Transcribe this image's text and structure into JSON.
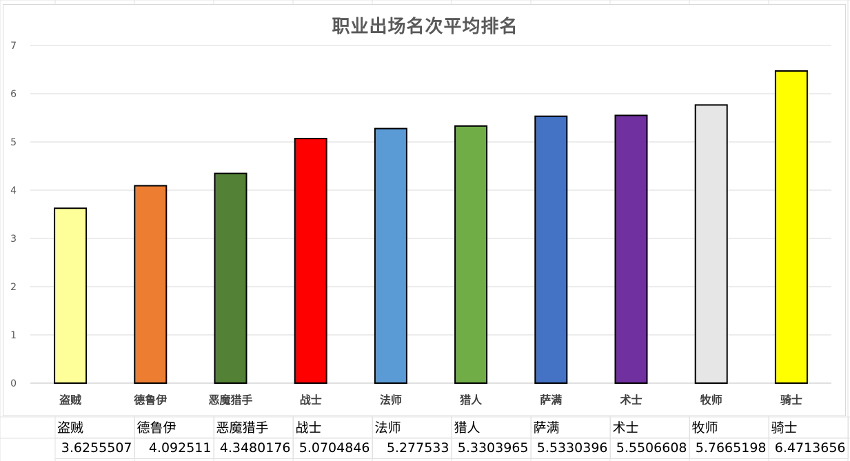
{
  "chart_data": {
    "type": "bar",
    "title": "职业出场名次平均排名",
    "xlabel": "",
    "ylabel": "",
    "ylim": [
      0,
      7
    ],
    "yticks": [
      0,
      1,
      2,
      3,
      4,
      5,
      6,
      7
    ],
    "grid": true,
    "legend": "none",
    "categories": [
      "盗贼",
      "德鲁伊",
      "恶魔猎手",
      "战士",
      "法师",
      "猎人",
      "萨满",
      "术士",
      "牧师",
      "骑士"
    ],
    "values": [
      3.6255507,
      4.092511,
      4.3480176,
      5.0704846,
      5.277533,
      5.3303965,
      5.5330396,
      5.5506608,
      5.7665198,
      6.4713656
    ],
    "colors": [
      "#FFFF99",
      "#ED7D31",
      "#538135",
      "#FF0000",
      "#5B9BD5",
      "#70AD47",
      "#4472C4",
      "#7030A0",
      "#E7E6E6",
      "#FFFF00"
    ]
  },
  "table": {
    "categories": [
      "盗贼",
      "德鲁伊",
      "恶魔猎手",
      "战士",
      "法师",
      "猎人",
      "萨满",
      "术士",
      "牧师",
      "骑士"
    ],
    "values": [
      "3.6255507",
      "4.092511",
      "4.3480176",
      "5.0704846",
      "5.277533",
      "5.3303965",
      "5.5330396",
      "5.5506608",
      "5.7665198",
      "6.4713656"
    ]
  }
}
